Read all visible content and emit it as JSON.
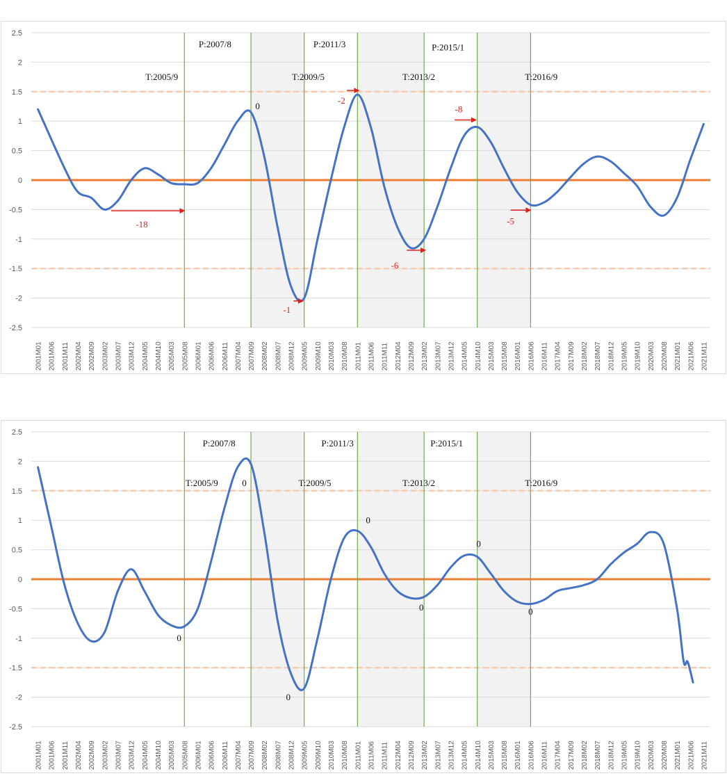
{
  "chart_data": [
    {
      "type": "line",
      "ylim": [
        -2.5,
        2.5
      ],
      "yticks": [
        "2.5",
        "2",
        "1.5",
        "1",
        "0.5",
        "0",
        "-0.5",
        "-1",
        "-1.5",
        "-2",
        "-2.5"
      ],
      "x_labels": [
        "2001M01",
        "2001M06",
        "2001M11",
        "2002M04",
        "2002M09",
        "2003M02",
        "2003M07",
        "2003M12",
        "2004M05",
        "2004M10",
        "2005M03",
        "2005M08",
        "2006M01",
        "2006M06",
        "2006M11",
        "2007M04",
        "2007M09",
        "2008M02",
        "2008M07",
        "2008M12",
        "2009M05",
        "2009M10",
        "2010M03",
        "2010M08",
        "2011M01",
        "2011M06",
        "2011M11",
        "2012M04",
        "2012M09",
        "2013M02",
        "2013M07",
        "2013M12",
        "2014M05",
        "2014M10",
        "2015M03",
        "2015M08",
        "2016M01",
        "2016M06",
        "2016M11",
        "2017M04",
        "2017M09",
        "2018M02",
        "2018M07",
        "2018M12",
        "2019M05",
        "2019M10",
        "2020M03",
        "2020M08",
        "2021M01",
        "2021M06",
        "2021M11"
      ],
      "series": [
        {
          "color": "#4472c4",
          "points": [
            [
              0,
              1.2
            ],
            [
              2,
              0.2
            ],
            [
              3,
              -0.2
            ],
            [
              4,
              -0.3
            ],
            [
              5,
              -0.5
            ],
            [
              6,
              -0.35
            ],
            [
              7,
              0.0
            ],
            [
              8,
              0.2
            ],
            [
              9,
              0.1
            ],
            [
              10,
              -0.05
            ],
            [
              11,
              -0.07
            ],
            [
              12,
              -0.05
            ],
            [
              13,
              0.2
            ],
            [
              14,
              0.6
            ],
            [
              15,
              1.0
            ],
            [
              16,
              1.15
            ],
            [
              17,
              0.4
            ],
            [
              18,
              -0.8
            ],
            [
              19,
              -1.8
            ],
            [
              20,
              -2.0
            ],
            [
              21,
              -1.0
            ],
            [
              22,
              0.0
            ],
            [
              23,
              0.9
            ],
            [
              24,
              1.45
            ],
            [
              25,
              0.9
            ],
            [
              26,
              -0.1
            ],
            [
              27,
              -0.8
            ],
            [
              28,
              -1.15
            ],
            [
              29,
              -1.0
            ],
            [
              30,
              -0.45
            ],
            [
              31,
              0.2
            ],
            [
              32,
              0.75
            ],
            [
              33,
              0.9
            ],
            [
              34,
              0.65
            ],
            [
              35,
              0.2
            ],
            [
              36,
              -0.2
            ],
            [
              37,
              -0.42
            ],
            [
              38,
              -0.38
            ],
            [
              39,
              -0.2
            ],
            [
              40,
              0.05
            ],
            [
              41,
              0.28
            ],
            [
              42,
              0.4
            ],
            [
              43,
              0.32
            ],
            [
              44,
              0.12
            ],
            [
              45,
              -0.1
            ],
            [
              46,
              -0.45
            ],
            [
              47,
              -0.6
            ],
            [
              48,
              -0.3
            ],
            [
              49,
              0.35
            ],
            [
              50,
              0.95
            ]
          ]
        }
      ],
      "reference_lines": [
        {
          "y": 0,
          "color": "#ed7d31",
          "style": "solid"
        },
        {
          "y": 1.5,
          "color": "#f8cbad",
          "style": "dashed"
        },
        {
          "y": -1.5,
          "color": "#f8cbad",
          "style": "dashed"
        }
      ],
      "vertical_lines": [
        11,
        16,
        20,
        24,
        29,
        33,
        37
      ],
      "shaded_ranges": [
        [
          16,
          20
        ],
        [
          24,
          29
        ],
        [
          33,
          37
        ]
      ],
      "annotations": [
        {
          "text": "T:2005/9",
          "x": 9.3,
          "y": 1.7,
          "color": "black"
        },
        {
          "text": "P:2007/8",
          "x": 13.3,
          "y": 2.25,
          "color": "black"
        },
        {
          "text": "P:2011/3",
          "x": 21.9,
          "y": 2.25,
          "color": "black"
        },
        {
          "text": "T:2009/5",
          "x": 20.3,
          "y": 1.7,
          "color": "black"
        },
        {
          "text": "T:2013/2",
          "x": 28.6,
          "y": 1.7,
          "color": "black"
        },
        {
          "text": "P:2015/1",
          "x": 30.8,
          "y": 2.2,
          "color": "black"
        },
        {
          "text": "T:2016/9",
          "x": 37.8,
          "y": 1.7,
          "color": "black"
        },
        {
          "text": "0",
          "x": 16.5,
          "y": 1.2,
          "color": "black"
        },
        {
          "text": "-18",
          "x": 7.8,
          "y": -0.8,
          "color": "red"
        },
        {
          "text": "-1",
          "x": 18.7,
          "y": -2.25,
          "color": "red"
        },
        {
          "text": "-2",
          "x": 22.8,
          "y": 1.3,
          "color": "red"
        },
        {
          "text": "-6",
          "x": 26.8,
          "y": -1.5,
          "color": "red"
        },
        {
          "text": "-8",
          "x": 31.6,
          "y": 1.15,
          "color": "red"
        },
        {
          "text": "-5",
          "x": 35.5,
          "y": -0.75,
          "color": "red"
        }
      ],
      "arrows": [
        {
          "from": [
            5.5,
            -0.52
          ],
          "to": [
            11,
            -0.52
          ]
        },
        {
          "from": [
            19.2,
            -2.05
          ],
          "to": [
            19.9,
            -2.05
          ]
        },
        {
          "from": [
            23.2,
            1.52
          ],
          "to": [
            24.1,
            1.52
          ]
        },
        {
          "from": [
            27.7,
            -1.19
          ],
          "to": [
            29.1,
            -1.19
          ]
        },
        {
          "from": [
            31.3,
            1.02
          ],
          "to": [
            32.9,
            1.02
          ]
        },
        {
          "from": [
            35.5,
            -0.51
          ],
          "to": [
            37.0,
            -0.51
          ]
        }
      ]
    },
    {
      "type": "line",
      "ylim": [
        -2.5,
        2.5
      ],
      "yticks": [
        "2.5",
        "2",
        "1.5",
        "1",
        "0.5",
        "0",
        "-0.5",
        "-1",
        "-1.5",
        "-2",
        "-2.5"
      ],
      "x_labels": [
        "2001M01",
        "2001M06",
        "2001M11",
        "2002M04",
        "2002M09",
        "2003M02",
        "2003M07",
        "2003M12",
        "2004M05",
        "2004M10",
        "2005M03",
        "2005M08",
        "2006M01",
        "2006M06",
        "2006M11",
        "2007M04",
        "2007M09",
        "2008M02",
        "2008M07",
        "2008M12",
        "2009M05",
        "2009M10",
        "2010M03",
        "2010M08",
        "2011M01",
        "2011M06",
        "2011M11",
        "2012M04",
        "2012M09",
        "2013M02",
        "2013M07",
        "2013M12",
        "2014M05",
        "2014M10",
        "2015M03",
        "2015M08",
        "2016M01",
        "2016M06",
        "2016M11",
        "2017M04",
        "2017M09",
        "2018M02",
        "2018M07",
        "2018M12",
        "2019M05",
        "2019M10",
        "2020M03",
        "2020M08",
        "2021M01",
        "2021M06",
        "2021M11"
      ],
      "series": [
        {
          "color": "#4472c4",
          "points": [
            [
              0,
              1.9
            ],
            [
              1,
              0.9
            ],
            [
              2,
              -0.1
            ],
            [
              3,
              -0.75
            ],
            [
              4,
              -1.05
            ],
            [
              5,
              -0.9
            ],
            [
              6,
              -0.2
            ],
            [
              7,
              0.17
            ],
            [
              8,
              -0.2
            ],
            [
              9,
              -0.6
            ],
            [
              10,
              -0.78
            ],
            [
              11,
              -0.8
            ],
            [
              12,
              -0.5
            ],
            [
              13,
              0.3
            ],
            [
              14,
              1.2
            ],
            [
              15,
              1.9
            ],
            [
              16,
              1.95
            ],
            [
              17,
              0.8
            ],
            [
              18,
              -0.7
            ],
            [
              19,
              -1.6
            ],
            [
              20,
              -1.85
            ],
            [
              21,
              -1.0
            ],
            [
              22,
              0.0
            ],
            [
              23,
              0.7
            ],
            [
              24,
              0.82
            ],
            [
              25,
              0.55
            ],
            [
              26,
              0.1
            ],
            [
              27,
              -0.2
            ],
            [
              28,
              -0.32
            ],
            [
              29,
              -0.3
            ],
            [
              30,
              -0.1
            ],
            [
              31,
              0.2
            ],
            [
              32,
              0.4
            ],
            [
              33,
              0.38
            ],
            [
              34,
              0.1
            ],
            [
              35,
              -0.2
            ],
            [
              36,
              -0.38
            ],
            [
              37,
              -0.42
            ],
            [
              38,
              -0.35
            ],
            [
              39,
              -0.2
            ],
            [
              40,
              -0.15
            ],
            [
              41,
              -0.1
            ],
            [
              42,
              0.0
            ],
            [
              43,
              0.25
            ],
            [
              44,
              0.45
            ],
            [
              45,
              0.6
            ],
            [
              46,
              0.8
            ],
            [
              47,
              0.6
            ],
            [
              48,
              -0.5
            ],
            [
              48.5,
              -1.4
            ],
            [
              48.8,
              -1.4
            ],
            [
              49.2,
              -1.75
            ]
          ]
        }
      ],
      "reference_lines": [
        {
          "y": 0,
          "color": "#ed7d31",
          "style": "solid"
        },
        {
          "y": 1.5,
          "color": "#f8cbad",
          "style": "dashed"
        },
        {
          "y": -1.5,
          "color": "#f8cbad",
          "style": "dashed"
        }
      ],
      "vertical_lines": [
        11,
        16,
        20,
        24,
        29,
        33,
        37
      ],
      "shaded_ranges": [
        [
          16,
          20
        ],
        [
          24,
          29
        ],
        [
          33,
          37
        ]
      ],
      "annotations": [
        {
          "text": "P:2007/8",
          "x": 13.6,
          "y": 2.25,
          "color": "black"
        },
        {
          "text": "P:2011/3",
          "x": 22.5,
          "y": 2.25,
          "color": "black"
        },
        {
          "text": "P:2015/1",
          "x": 30.7,
          "y": 2.25,
          "color": "black"
        },
        {
          "text": "T:2005/9",
          "x": 12.3,
          "y": 1.58,
          "color": "black"
        },
        {
          "text": "0",
          "x": 15.5,
          "y": 1.58,
          "color": "black"
        },
        {
          "text": "T:2009/5",
          "x": 20.8,
          "y": 1.58,
          "color": "black"
        },
        {
          "text": "T:2013/2",
          "x": 28.6,
          "y": 1.58,
          "color": "black"
        },
        {
          "text": "T:2016/9",
          "x": 37.8,
          "y": 1.58,
          "color": "black"
        },
        {
          "text": "0",
          "x": 10.6,
          "y": -1.05,
          "color": "black"
        },
        {
          "text": "0",
          "x": 18.8,
          "y": -2.05,
          "color": "black"
        },
        {
          "text": "0",
          "x": 24.8,
          "y": 0.95,
          "color": "black"
        },
        {
          "text": "0",
          "x": 28.8,
          "y": -0.53,
          "color": "black"
        },
        {
          "text": "0",
          "x": 33.1,
          "y": 0.55,
          "color": "black"
        },
        {
          "text": "0",
          "x": 37.0,
          "y": -0.6,
          "color": "black"
        }
      ],
      "arrows": []
    }
  ]
}
